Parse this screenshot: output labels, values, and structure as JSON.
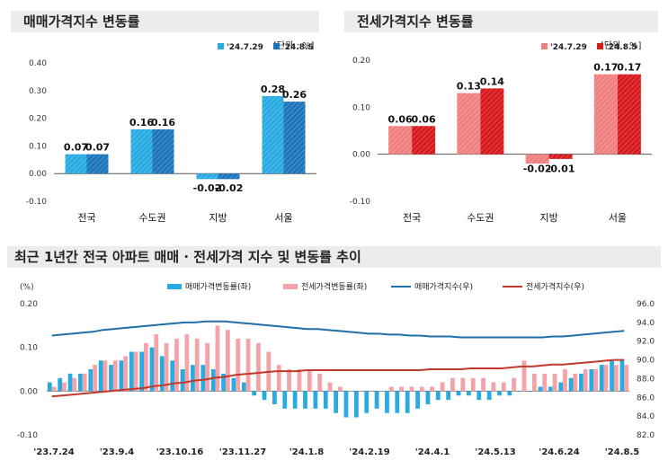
{
  "left": {
    "title": "매매가격지수 변동률",
    "unit": "[단위 : %]",
    "chart_data": {
      "type": "bar",
      "categories": [
        "전국",
        "수도권",
        "지방",
        "서울"
      ],
      "series": [
        {
          "name": "'24.7.29",
          "values": [
            0.07,
            0.16,
            -0.02,
            0.28
          ],
          "color": "#29abe2"
        },
        {
          "name": "'24.8.5",
          "values": [
            0.07,
            0.16,
            -0.02,
            0.26
          ],
          "color": "#1c75bc"
        }
      ],
      "ylim": [
        -0.1,
        0.4
      ],
      "yticks": [
        "0.40",
        "0.30",
        "0.20",
        "0.10",
        "0.00",
        "-0.10"
      ],
      "ytick_values": [
        0.4,
        0.3,
        0.2,
        0.1,
        0.0,
        -0.1
      ],
      "labels": [
        [
          "0.07",
          "0.16",
          "-0.02",
          "0.28"
        ],
        [
          "0.07",
          "0.16",
          "-0.02",
          "0.26"
        ]
      ],
      "legend": "top-right"
    }
  },
  "right": {
    "title": "전세가격지수 변동률",
    "unit": "[단위 : %]",
    "chart_data": {
      "type": "bar",
      "categories": [
        "전국",
        "수도권",
        "지방",
        "서울"
      ],
      "series": [
        {
          "name": "'24.7.29",
          "values": [
            0.06,
            0.13,
            -0.02,
            0.17
          ],
          "color": "#f08080"
        },
        {
          "name": "'24.8.5",
          "values": [
            0.06,
            0.14,
            -0.01,
            0.17
          ],
          "color": "#d7191c"
        }
      ],
      "ylim": [
        -0.1,
        0.2
      ],
      "yticks": [
        "0.20",
        "0.10",
        "0.00",
        "-0.10"
      ],
      "ytick_values": [
        0.2,
        0.1,
        0.0,
        -0.1
      ],
      "labels": [
        [
          "0.06",
          "0.13",
          "-0.02",
          "0.17"
        ],
        [
          "0.06",
          "0.14",
          "-0.01",
          "0.17"
        ]
      ],
      "legend": "top-right"
    }
  },
  "bottom": {
    "title": "최근 1년간 전국 아파트 매매 · 전세가격 지수 및 변동률 추이",
    "chart_data": {
      "type": "bar+line",
      "left_unit": "(%)",
      "left_yticks": [
        "0.20",
        "0.10",
        "0.00",
        "-0.10"
      ],
      "left_ytick_values": [
        0.2,
        0.1,
        0.0,
        -0.1
      ],
      "left_ylim": [
        -0.1,
        0.2
      ],
      "right_yticks": [
        "96.0",
        "94.0",
        "92.0",
        "90.0",
        "88.0",
        "86.0",
        "84.0",
        "82.0"
      ],
      "right_ytick_values": [
        96,
        94,
        92,
        90,
        88,
        86,
        84,
        82
      ],
      "right_ylim": [
        82,
        96
      ],
      "xticks": [
        "'23.7.24",
        "'23.9.4",
        "'23.10.16",
        "'23.11.27",
        "'24.1.8",
        "'24.2.19",
        "'24.4.1",
        "'24.5.13",
        "'24.6.24",
        "'24.8.5"
      ],
      "legend": [
        {
          "name": "매매가격변동률(좌)",
          "color": "#29abe2",
          "kind": "bar"
        },
        {
          "name": "전세가격변동률(좌)",
          "color": "#f4a3a8",
          "kind": "bar"
        },
        {
          "name": "매매가격지수(우)",
          "color": "#1f6fa8",
          "kind": "line"
        },
        {
          "name": "전세가격지수(우)",
          "color": "#c0392b",
          "kind": "line"
        }
      ],
      "sale_change": [
        0.02,
        0.03,
        0.04,
        0.04,
        0.05,
        0.07,
        0.06,
        0.07,
        0.09,
        0.09,
        0.1,
        0.08,
        0.07,
        0.05,
        0.06,
        0.06,
        0.05,
        0.04,
        0.03,
        0.02,
        -0.01,
        -0.02,
        -0.03,
        -0.04,
        -0.04,
        -0.04,
        -0.04,
        -0.04,
        -0.05,
        -0.06,
        -0.06,
        -0.05,
        -0.04,
        -0.05,
        -0.05,
        -0.05,
        -0.04,
        -0.03,
        -0.02,
        -0.02,
        -0.01,
        -0.01,
        -0.02,
        -0.02,
        -0.01,
        -0.01,
        0.0,
        0.0,
        0.01,
        0.01,
        0.02,
        0.03,
        0.04,
        0.05,
        0.06,
        0.07,
        0.07
      ],
      "jeonse_change": [
        0.01,
        0.02,
        0.03,
        0.04,
        0.06,
        0.07,
        0.07,
        0.08,
        0.09,
        0.11,
        0.13,
        0.11,
        0.12,
        0.13,
        0.12,
        0.11,
        0.15,
        0.14,
        0.12,
        0.12,
        0.11,
        0.09,
        0.06,
        0.05,
        0.05,
        0.05,
        0.04,
        0.02,
        0.01,
        0.0,
        0.0,
        0.0,
        0.0,
        0.01,
        0.01,
        0.01,
        0.01,
        0.01,
        0.02,
        0.03,
        0.03,
        0.03,
        0.03,
        0.02,
        0.02,
        0.03,
        0.07,
        0.04,
        0.04,
        0.04,
        0.05,
        0.04,
        0.05,
        0.05,
        0.06,
        0.06,
        0.06
      ],
      "sale_index": [
        92.6,
        92.7,
        92.8,
        92.9,
        93.0,
        93.2,
        93.3,
        93.4,
        93.5,
        93.6,
        93.7,
        93.8,
        93.9,
        94.0,
        94.0,
        94.1,
        94.1,
        94.1,
        94.0,
        93.9,
        93.8,
        93.7,
        93.6,
        93.5,
        93.4,
        93.3,
        93.3,
        93.2,
        93.1,
        93.0,
        92.9,
        92.8,
        92.8,
        92.7,
        92.7,
        92.6,
        92.6,
        92.5,
        92.5,
        92.5,
        92.4,
        92.4,
        92.4,
        92.4,
        92.4,
        92.4,
        92.4,
        92.4,
        92.4,
        92.5,
        92.5,
        92.6,
        92.7,
        92.8,
        92.9,
        93.0,
        93.1
      ],
      "jeonse_index": [
        86.1,
        86.2,
        86.3,
        86.4,
        86.5,
        86.6,
        86.7,
        86.8,
        86.9,
        87.0,
        87.2,
        87.3,
        87.5,
        87.6,
        87.8,
        87.9,
        88.1,
        88.2,
        88.4,
        88.5,
        88.6,
        88.7,
        88.8,
        88.8,
        88.8,
        88.9,
        88.9,
        88.9,
        88.9,
        88.9,
        88.9,
        88.9,
        88.9,
        88.9,
        88.9,
        88.9,
        88.9,
        89.0,
        89.0,
        89.0,
        89.0,
        89.1,
        89.1,
        89.1,
        89.1,
        89.2,
        89.3,
        89.3,
        89.4,
        89.5,
        89.5,
        89.6,
        89.7,
        89.8,
        89.9,
        90.0,
        90.0
      ]
    }
  }
}
